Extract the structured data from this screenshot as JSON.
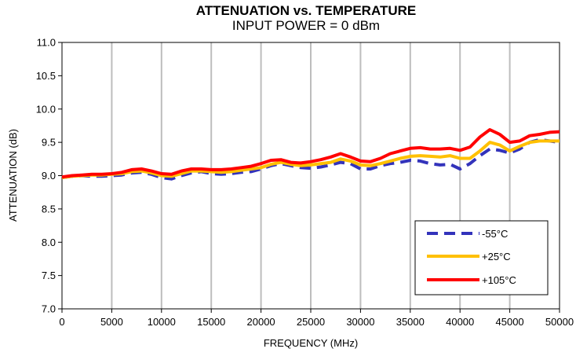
{
  "chart_data": {
    "type": "line",
    "title": "ATTENUATION vs. TEMPERATURE",
    "subtitle": "INPUT POWER = 0 dBm",
    "xlabel": "FREQUENCY (MHz)",
    "ylabel": "ATTENUATION (dB)",
    "xlim": [
      0,
      50000
    ],
    "ylim": [
      7.0,
      11.0
    ],
    "xticks": [
      "0",
      "5000",
      "10000",
      "15000",
      "20000",
      "25000",
      "30000",
      "35000",
      "40000",
      "45000",
      "50000"
    ],
    "yticks": [
      "7.0",
      "7.5",
      "8.0",
      "8.5",
      "9.0",
      "9.5",
      "10.0",
      "10.5",
      "11.0"
    ],
    "grid": "vertical",
    "legend_position": "bottom-right",
    "series": [
      {
        "name": "-55°C",
        "color": "#3333bb",
        "style": "dashed",
        "x": [
          0,
          1000,
          2000,
          3000,
          4000,
          5000,
          6000,
          7000,
          8000,
          9000,
          10000,
          11000,
          12000,
          13000,
          14000,
          15000,
          16000,
          17000,
          18000,
          19000,
          20000,
          21000,
          22000,
          23000,
          24000,
          25000,
          26000,
          27000,
          28000,
          29000,
          30000,
          31000,
          32000,
          33000,
          34000,
          35000,
          36000,
          37000,
          38000,
          39000,
          40000,
          41000,
          42000,
          43000,
          44000,
          45000,
          46000,
          47000,
          48000,
          49000,
          50000
        ],
        "values": [
          8.97,
          8.99,
          9.0,
          8.99,
          8.99,
          9.0,
          9.01,
          9.04,
          9.05,
          9.02,
          8.97,
          8.95,
          9.0,
          9.04,
          9.06,
          9.03,
          9.02,
          9.03,
          9.05,
          9.06,
          9.1,
          9.15,
          9.18,
          9.15,
          9.12,
          9.11,
          9.13,
          9.16,
          9.2,
          9.18,
          9.1,
          9.1,
          9.15,
          9.18,
          9.2,
          9.23,
          9.22,
          9.18,
          9.16,
          9.17,
          9.1,
          9.18,
          9.3,
          9.4,
          9.38,
          9.34,
          9.4,
          9.5,
          9.54,
          9.52,
          9.5
        ]
      },
      {
        "name": "+25°C",
        "color": "#ffc000",
        "style": "solid",
        "x": [
          0,
          1000,
          2000,
          3000,
          4000,
          5000,
          6000,
          7000,
          8000,
          9000,
          10000,
          11000,
          12000,
          13000,
          14000,
          15000,
          16000,
          17000,
          18000,
          19000,
          20000,
          21000,
          22000,
          23000,
          24000,
          25000,
          26000,
          27000,
          28000,
          29000,
          30000,
          31000,
          32000,
          33000,
          34000,
          35000,
          36000,
          37000,
          38000,
          39000,
          40000,
          41000,
          42000,
          43000,
          44000,
          45000,
          46000,
          47000,
          48000,
          49000,
          50000
        ],
        "values": [
          8.97,
          8.99,
          9.0,
          9.01,
          9.01,
          9.02,
          9.03,
          9.06,
          9.07,
          9.04,
          9.0,
          8.99,
          9.03,
          9.07,
          9.07,
          9.06,
          9.05,
          9.06,
          9.08,
          9.1,
          9.12,
          9.17,
          9.2,
          9.17,
          9.15,
          9.16,
          9.18,
          9.2,
          9.25,
          9.22,
          9.16,
          9.15,
          9.18,
          9.22,
          9.26,
          9.29,
          9.3,
          9.29,
          9.28,
          9.3,
          9.26,
          9.26,
          9.37,
          9.5,
          9.46,
          9.37,
          9.44,
          9.5,
          9.52,
          9.52,
          9.52
        ]
      },
      {
        "name": "+105°C",
        "color": "#ff0000",
        "style": "solid",
        "x": [
          0,
          1000,
          2000,
          3000,
          4000,
          5000,
          6000,
          7000,
          8000,
          9000,
          10000,
          11000,
          12000,
          13000,
          14000,
          15000,
          16000,
          17000,
          18000,
          19000,
          20000,
          21000,
          22000,
          23000,
          24000,
          25000,
          26000,
          27000,
          28000,
          29000,
          30000,
          31000,
          32000,
          33000,
          34000,
          35000,
          36000,
          37000,
          38000,
          39000,
          40000,
          41000,
          42000,
          43000,
          44000,
          45000,
          46000,
          47000,
          48000,
          49000,
          50000
        ],
        "values": [
          8.98,
          9.0,
          9.01,
          9.02,
          9.02,
          9.03,
          9.05,
          9.09,
          9.1,
          9.07,
          9.03,
          9.02,
          9.07,
          9.1,
          9.1,
          9.09,
          9.09,
          9.1,
          9.12,
          9.14,
          9.18,
          9.23,
          9.24,
          9.2,
          9.19,
          9.21,
          9.24,
          9.28,
          9.33,
          9.28,
          9.22,
          9.21,
          9.26,
          9.33,
          9.37,
          9.41,
          9.42,
          9.4,
          9.4,
          9.41,
          9.38,
          9.43,
          9.58,
          9.69,
          9.62,
          9.5,
          9.52,
          9.6,
          9.62,
          9.65,
          9.66
        ]
      }
    ]
  }
}
